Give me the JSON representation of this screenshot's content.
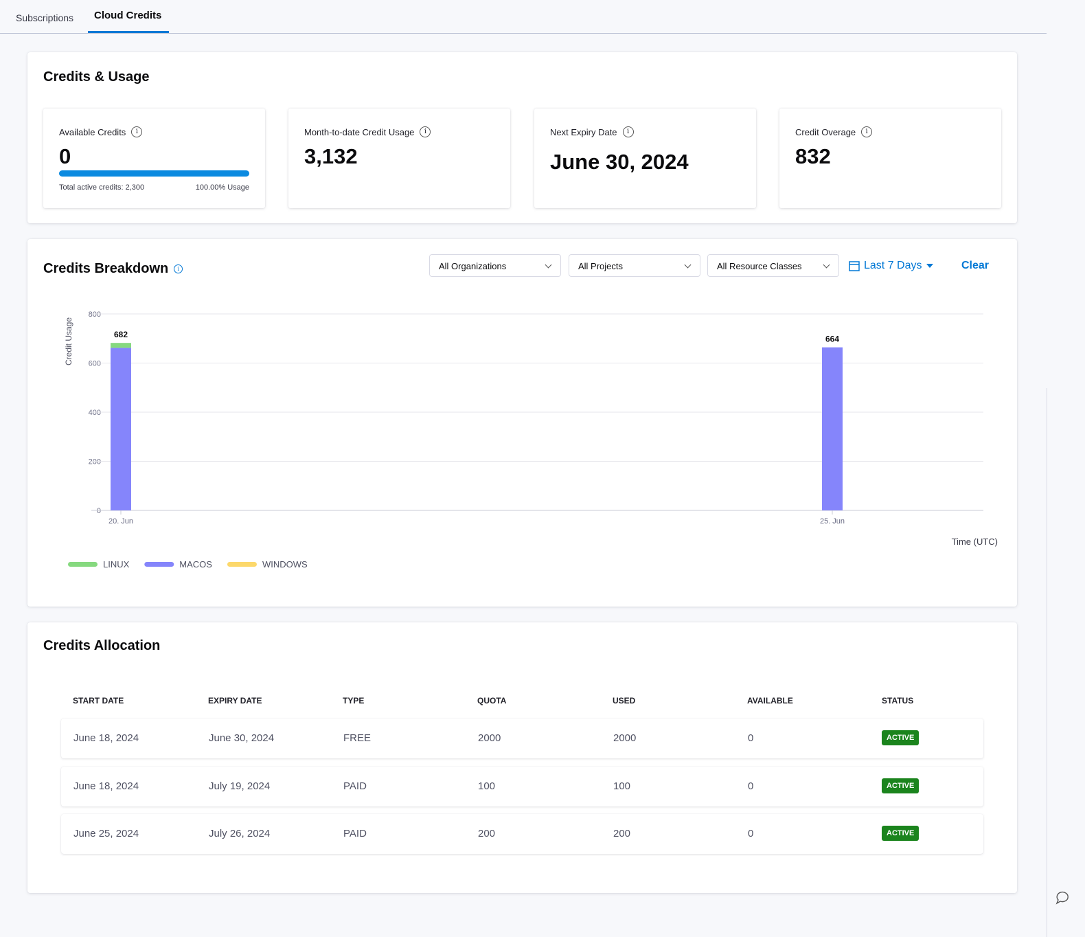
{
  "tabs": [
    "Subscriptions",
    "Cloud Credits"
  ],
  "usage": {
    "title": "Credits & Usage",
    "cards": [
      {
        "label": "Available Credits",
        "value": "0",
        "footer_left": "Total active credits: 2,300",
        "footer_right": "100.00% Usage"
      },
      {
        "label": "Month-to-date Credit Usage",
        "value": "3,132"
      },
      {
        "label": "Next Expiry Date",
        "value": "June 30, 2024"
      },
      {
        "label": "Credit Overage",
        "value": "832"
      }
    ]
  },
  "breakdown": {
    "title": "Credits Breakdown",
    "filters": [
      "All Organizations",
      "All Projects",
      "All Resource Classes"
    ],
    "date_range": "Last 7 Days",
    "clear": "Clear"
  },
  "chart_data": {
    "type": "stacked-bar",
    "y_label": "Credit Usage",
    "x_label": "Time (UTC)",
    "categories": [
      "20. Jun",
      null,
      null,
      null,
      null,
      "25. Jun",
      null
    ],
    "series": [
      {
        "name": "LINUX",
        "color": "#86d97f",
        "values": [
          20,
          null,
          null,
          null,
          null,
          0,
          null
        ]
      },
      {
        "name": "MACOS",
        "color": "#8585fb",
        "values": [
          662,
          null,
          null,
          null,
          null,
          664,
          null
        ]
      },
      {
        "name": "WINDOWS",
        "color": "#fcd86b",
        "values": [
          0,
          null,
          null,
          null,
          null,
          0,
          null
        ]
      }
    ],
    "totals": [
      682,
      null,
      null,
      null,
      null,
      664,
      null
    ],
    "ylim": [
      0,
      800
    ],
    "yticks": [
      0,
      200,
      400,
      600,
      800
    ],
    "grid": true,
    "legend": "bottom-left"
  },
  "allocation": {
    "title": "Credits Allocation",
    "columns": [
      "START DATE",
      "EXPIRY DATE",
      "TYPE",
      "QUOTA",
      "USED",
      "AVAILABLE",
      "STATUS"
    ],
    "rows": [
      [
        "June 18, 2024",
        "June 30, 2024",
        "FREE",
        "2000",
        "2000",
        "0",
        "ACTIVE"
      ],
      [
        "June 18, 2024",
        "July 19, 2024",
        "PAID",
        "100",
        "100",
        "0",
        "ACTIVE"
      ],
      [
        "June 25, 2024",
        "July 26, 2024",
        "PAID",
        "200",
        "200",
        "0",
        "ACTIVE"
      ]
    ]
  }
}
